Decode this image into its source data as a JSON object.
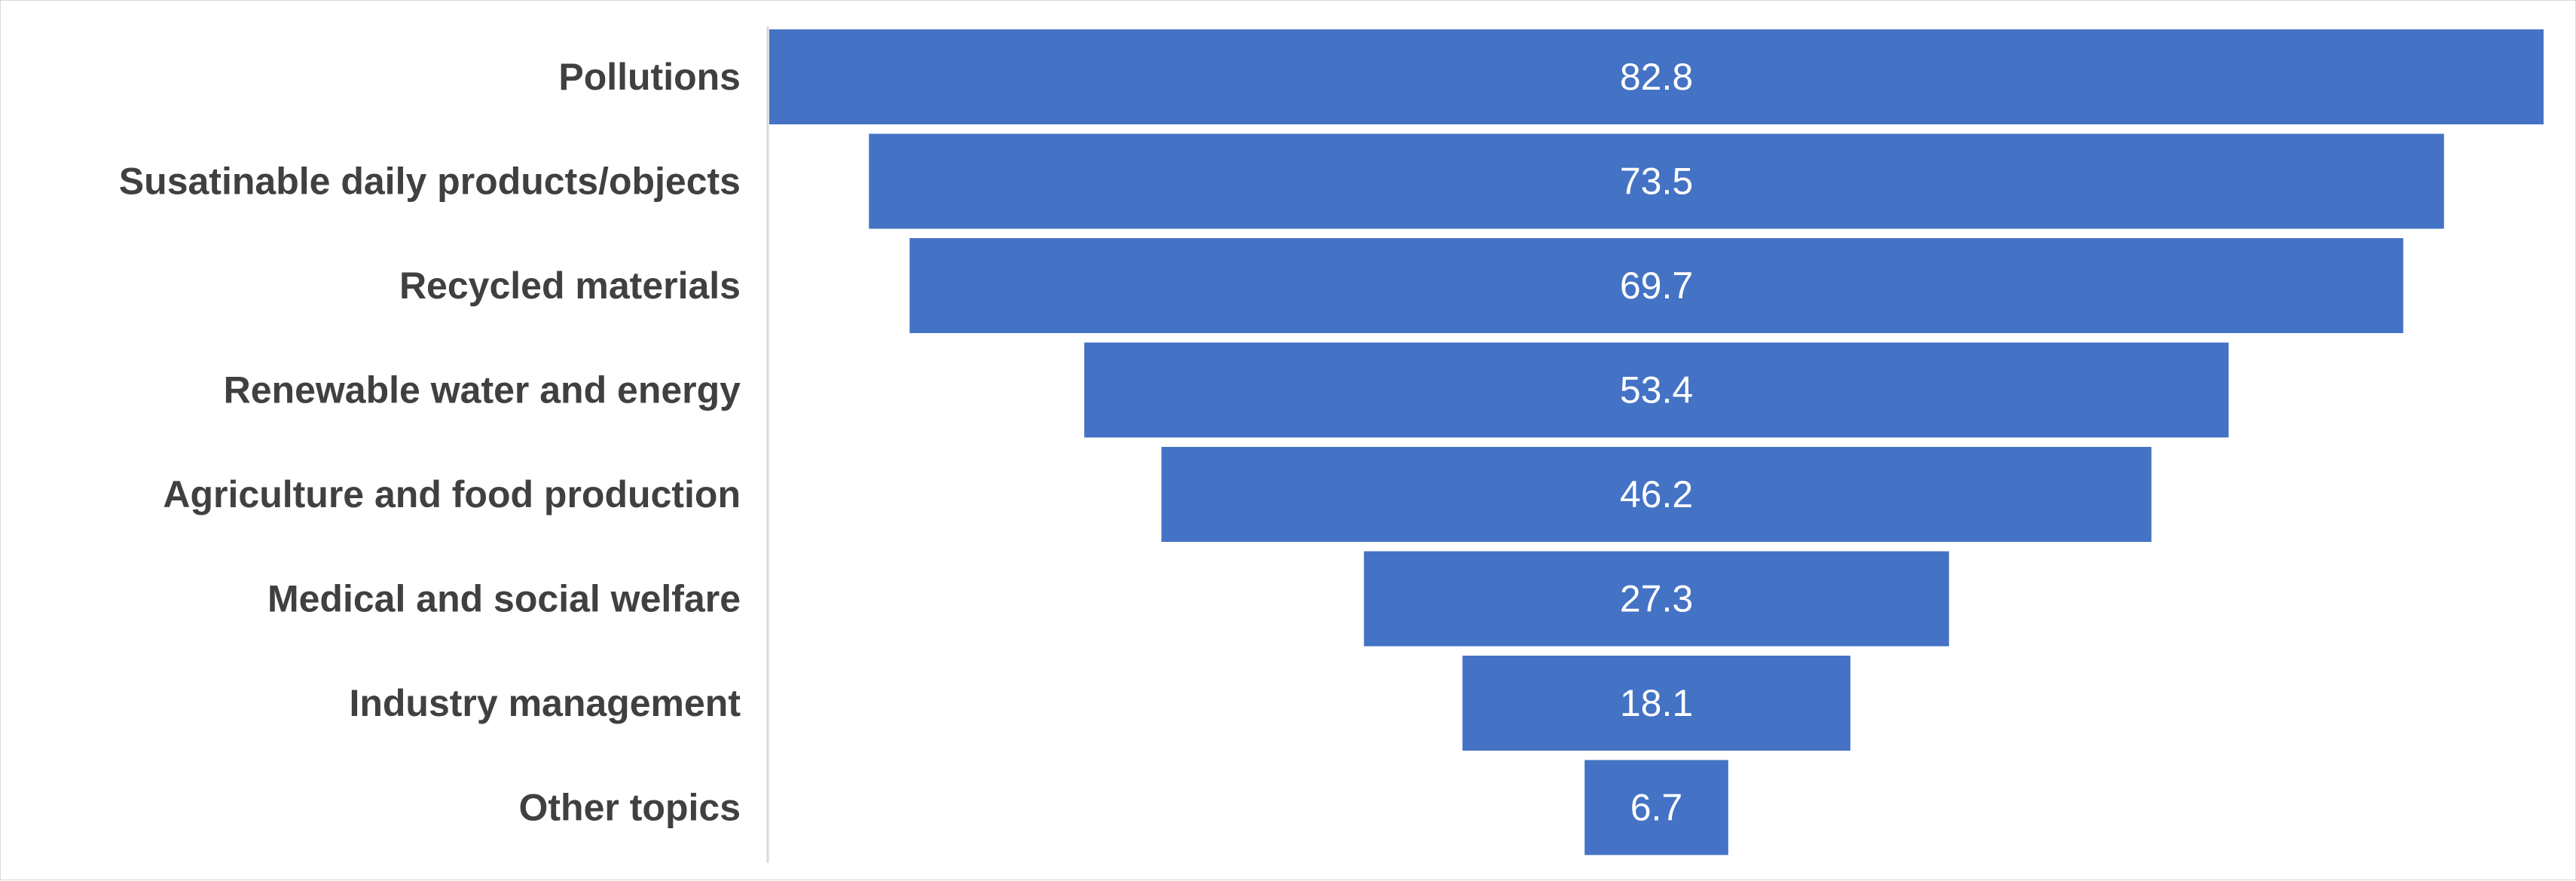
{
  "chart_data": {
    "type": "bar",
    "orientation": "horizontal",
    "style": "funnel (bars centered)",
    "title": "",
    "xlabel": "",
    "ylabel": "",
    "categories": [
      "Pollutions",
      "Susatinable daily products/objects",
      "Recycled materials",
      "Renewable water and energy",
      "Agriculture and food production",
      "Medical and social welfare",
      "Industry management",
      "Other topics"
    ],
    "values": [
      82.8,
      73.5,
      69.7,
      53.4,
      46.2,
      27.3,
      18.1,
      6.7
    ],
    "data_labels": [
      "82.8",
      "73.5",
      "69.7",
      "53.4",
      "46.2",
      "27.3",
      "18.1",
      "6.7"
    ],
    "xlim": [
      0,
      82.8
    ],
    "grid": false,
    "legend": "none",
    "bar_color": "#4472C4",
    "label_color": "#404040",
    "data_label_color": "#FFFFFF"
  }
}
